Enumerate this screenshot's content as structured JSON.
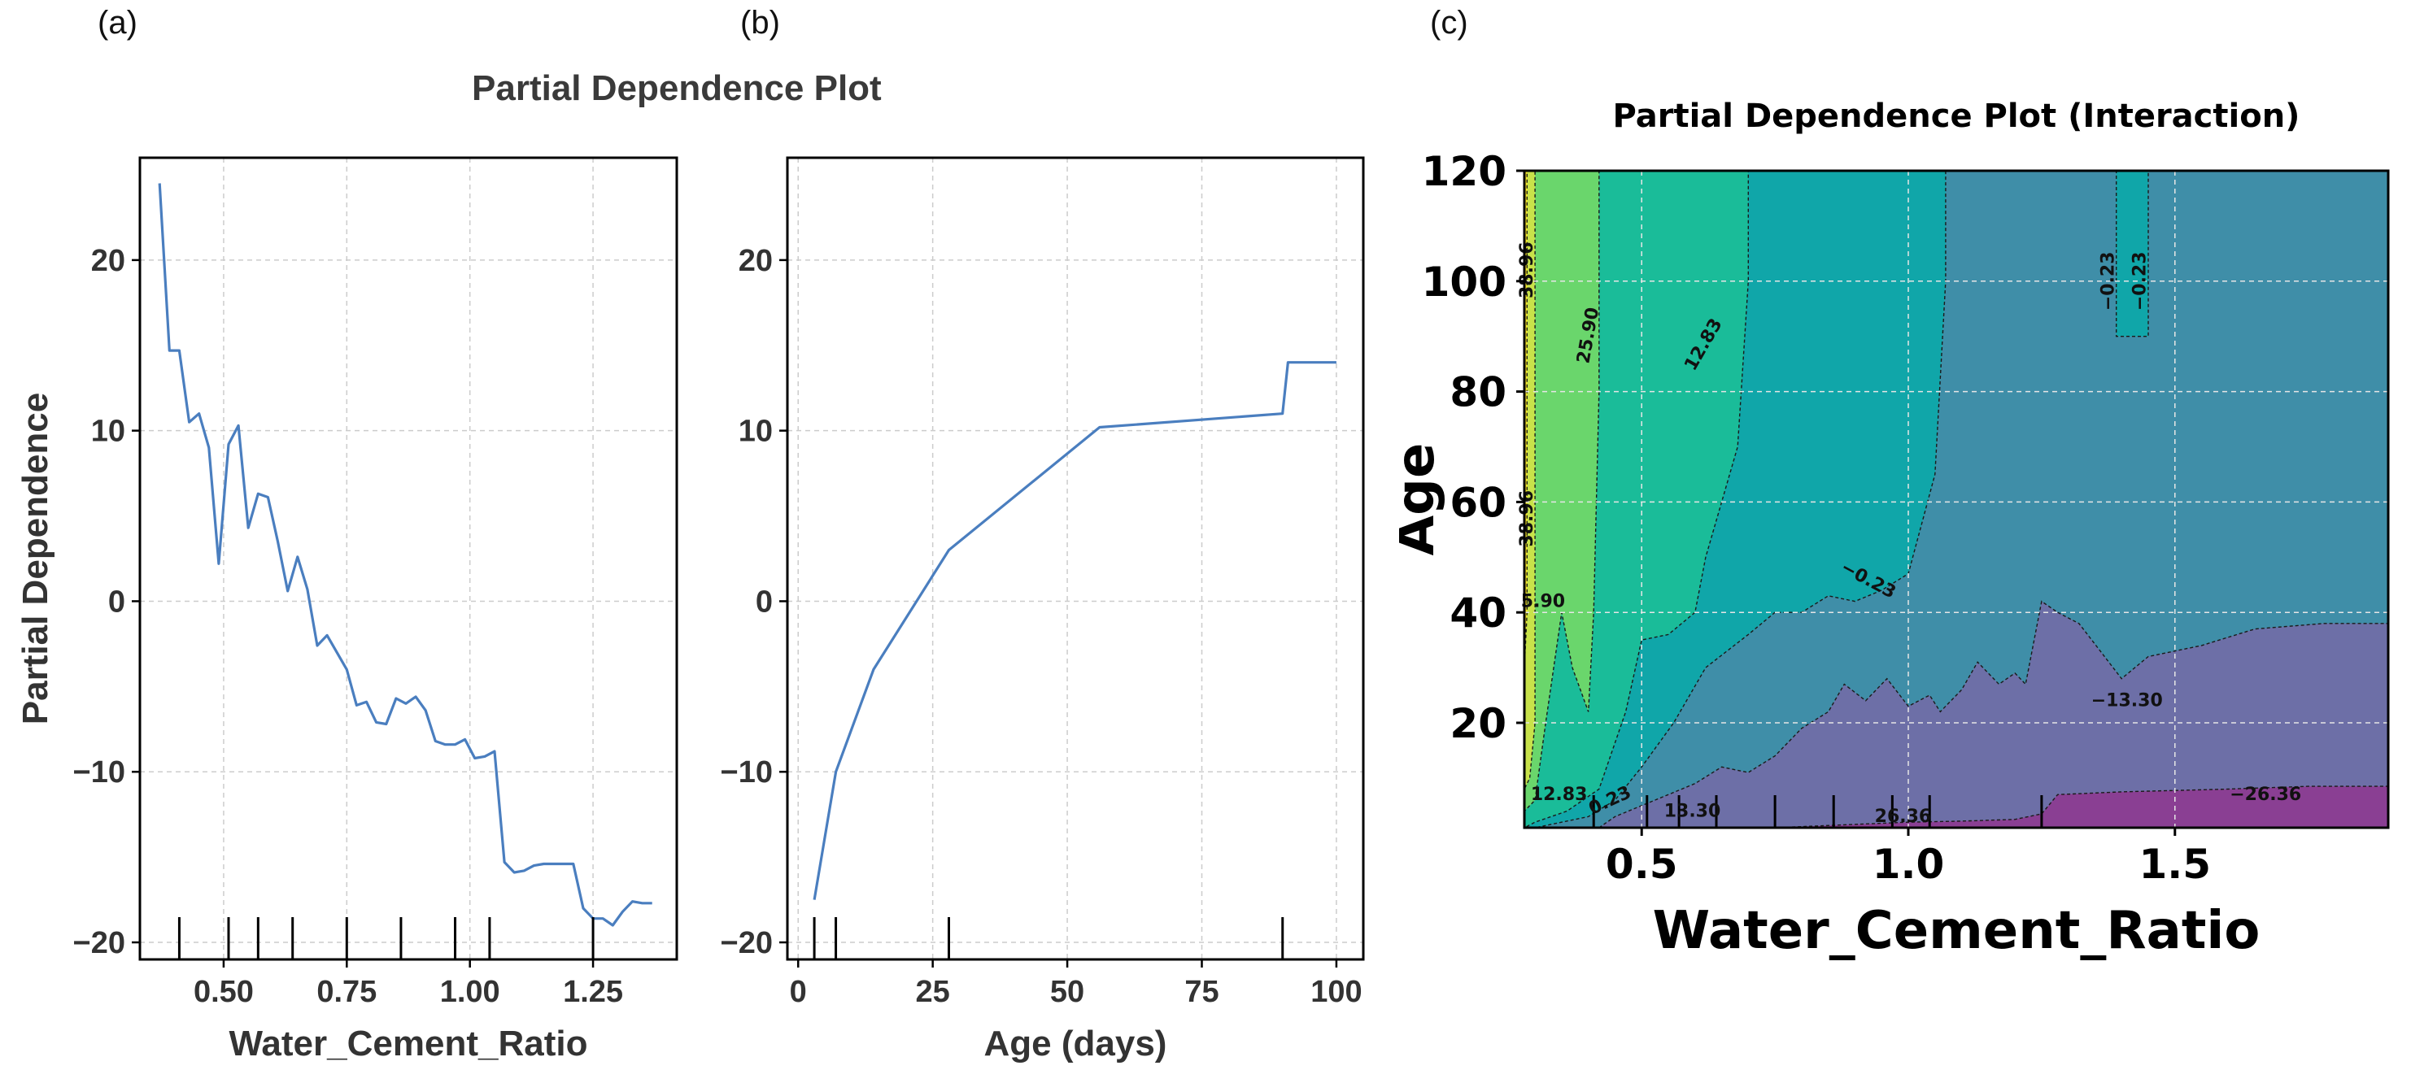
{
  "panel_labels": {
    "a": "(a)",
    "b": "(b)",
    "c": "(c)"
  },
  "suptitle": "Partial Dependence Plot",
  "colors": {
    "line": "#4a7ebf",
    "grid": "#cccccc",
    "axes": "#000000",
    "contour_levels": [
      "#8a3f93",
      "#6d6fa7",
      "#3f8ea8",
      "#10a6a9",
      "#1abc99",
      "#6ad66c",
      "#c8e24a",
      "#fde725"
    ]
  },
  "chart_data": [
    {
      "type": "line",
      "panel": "a",
      "title": "",
      "xlabel": "Water_Cement_Ratio",
      "ylabel": "Partial Dependence",
      "xlim": [
        0.33,
        1.42
      ],
      "ylim": [
        -21,
        26
      ],
      "xticks": [
        0.5,
        0.75,
        1.0,
        1.25
      ],
      "xtick_labels": [
        "0.50",
        "0.75",
        "1.00",
        "1.25"
      ],
      "yticks": [
        -20,
        -10,
        0,
        10,
        20
      ],
      "ytick_labels": [
        "−20",
        "−10",
        "0",
        "10",
        "20"
      ],
      "grid": true,
      "x": [
        0.37,
        0.39,
        0.41,
        0.43,
        0.45,
        0.47,
        0.49,
        0.51,
        0.53,
        0.55,
        0.57,
        0.59,
        0.61,
        0.63,
        0.65,
        0.67,
        0.69,
        0.71,
        0.73,
        0.75,
        0.77,
        0.79,
        0.81,
        0.83,
        0.85,
        0.87,
        0.89,
        0.91,
        0.93,
        0.95,
        0.97,
        0.99,
        1.01,
        1.03,
        1.05,
        1.07,
        1.09,
        1.11,
        1.13,
        1.15,
        1.17,
        1.19,
        1.21,
        1.23,
        1.25,
        1.27,
        1.29,
        1.31,
        1.33,
        1.35,
        1.37
      ],
      "values": [
        24.5,
        14.7,
        14.7,
        10.5,
        11.0,
        9.0,
        2.2,
        9.2,
        10.3,
        4.3,
        6.3,
        6.1,
        3.5,
        0.6,
        2.6,
        0.7,
        -2.6,
        -2.0,
        -3.0,
        -4.0,
        -6.1,
        -5.9,
        -7.1,
        -7.2,
        -5.7,
        -6.0,
        -5.6,
        -6.4,
        -8.2,
        -8.4,
        -8.4,
        -8.1,
        -9.2,
        -9.1,
        -8.8,
        -15.3,
        -15.9,
        -15.8,
        -15.5,
        -15.4,
        -15.4,
        -15.4,
        -15.4,
        -18.0,
        -18.6,
        -18.6,
        -19.0,
        -18.2,
        -17.6,
        -17.7,
        -17.7
      ],
      "rug": [
        0.41,
        0.51,
        0.57,
        0.64,
        0.75,
        0.86,
        0.97,
        1.04,
        1.25
      ]
    },
    {
      "type": "line",
      "panel": "b",
      "title": "",
      "xlabel": "Age (days)",
      "ylabel": "",
      "xlim": [
        -2,
        105
      ],
      "ylim": [
        -21,
        26
      ],
      "xticks": [
        0,
        25,
        50,
        75,
        100
      ],
      "xtick_labels": [
        "0",
        "25",
        "50",
        "75",
        "100"
      ],
      "yticks": [
        -20,
        -10,
        0,
        10,
        20
      ],
      "ytick_labels": [
        "−20",
        "−10",
        "0",
        "10",
        "20"
      ],
      "grid": true,
      "x": [
        3,
        7,
        14,
        28,
        56,
        90,
        91,
        100
      ],
      "values": [
        -17.5,
        -10.0,
        -4.0,
        3.0,
        10.2,
        11.0,
        14.0,
        14.0
      ],
      "rug": [
        3,
        7,
        28,
        90
      ]
    },
    {
      "type": "contour",
      "panel": "c",
      "title": "Partial Dependence Plot (Interaction)",
      "xlabel": "Water_Cement_Ratio",
      "ylabel": "Age",
      "xlim": [
        0.28,
        1.9
      ],
      "ylim": [
        1,
        120
      ],
      "xticks": [
        0.5,
        1.0,
        1.5
      ],
      "xtick_labels": [
        "0.5",
        "1.0",
        "1.5"
      ],
      "yticks": [
        20,
        40,
        60,
        80,
        100,
        120
      ],
      "ytick_labels": [
        "20",
        "40",
        "60",
        "80",
        "100",
        "120"
      ],
      "grid": true,
      "levels": [
        -39.43,
        -26.36,
        -13.3,
        -0.23,
        12.83,
        25.9,
        38.96,
        52.03
      ],
      "contour_labels": [
        {
          "text": "38.96",
          "x": 0.295,
          "y": 102,
          "rot": 90
        },
        {
          "text": "38.96",
          "x": 0.295,
          "y": 57,
          "rot": 90
        },
        {
          "text": "25.90",
          "x": 0.41,
          "y": 90,
          "rot": 80
        },
        {
          "text": "12.83",
          "x": 0.625,
          "y": 88,
          "rot": 60
        },
        {
          "text": "−0.23",
          "x": 1.385,
          "y": 100,
          "rot": 90
        },
        {
          "text": "−0.23",
          "x": 1.445,
          "y": 100,
          "rot": 90
        },
        {
          "text": "5.90",
          "x": 0.315,
          "y": 41,
          "rot": 0
        },
        {
          "text": "−0.23",
          "x": 0.92,
          "y": 45,
          "rot": -28
        },
        {
          "text": "−13.30",
          "x": 1.41,
          "y": 23,
          "rot": 0
        },
        {
          "text": "−26.36",
          "x": 1.67,
          "y": 6,
          "rot": 0
        },
        {
          "text": "12.83",
          "x": 0.345,
          "y": 6,
          "rot": 0
        },
        {
          "text": "0.23",
          "x": 0.445,
          "y": 5,
          "rot": 25
        },
        {
          "text": "13.30",
          "x": 0.595,
          "y": 3,
          "rot": 0
        },
        {
          "text": "26.36",
          "x": 0.99,
          "y": 2,
          "rot": 0
        }
      ],
      "rug": [
        0.41,
        0.51,
        0.57,
        0.64,
        0.75,
        0.86,
        0.97,
        1.04,
        1.25
      ]
    }
  ]
}
